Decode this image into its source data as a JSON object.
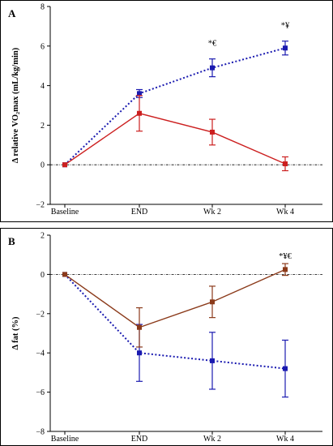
{
  "chart_data": [
    {
      "type": "line",
      "panel_label": "A",
      "ylabel": "Δ relative VO₂max (mL/kg/min)",
      "xlabel": "",
      "categories": [
        "Baseline",
        "END",
        "Wk 2",
        "Wk 4"
      ],
      "ylim": [
        -2,
        8
      ],
      "yticks": [
        -2,
        0,
        2,
        4,
        6,
        8
      ],
      "zero_line": "dashed",
      "grid": false,
      "series": [
        {
          "color": "#1a1ab0",
          "line_style": "dotted",
          "marker": "square",
          "values": [
            0,
            3.6,
            4.9,
            5.9
          ],
          "error": [
            0,
            0.2,
            0.45,
            0.35
          ]
        },
        {
          "color": "#cc1f1f",
          "line_style": "solid",
          "marker": "square",
          "values": [
            0,
            2.6,
            1.65,
            0.05
          ],
          "error": [
            0,
            0.9,
            0.65,
            0.35
          ]
        }
      ],
      "annotations": [
        {
          "category": "Wk 2",
          "text": "*€"
        },
        {
          "category": "Wk 4",
          "text": "*¥"
        }
      ]
    },
    {
      "type": "line",
      "panel_label": "B",
      "ylabel": "Δ fat (%)",
      "xlabel": "",
      "categories": [
        "Baseline",
        "END",
        "Wk 2",
        "Wk 4"
      ],
      "ylim": [
        -8,
        2
      ],
      "yticks": [
        -8,
        -6,
        -4,
        -2,
        0,
        2
      ],
      "zero_line": "dashed",
      "grid": false,
      "series": [
        {
          "color": "#1a1ab0",
          "line_style": "dotted",
          "marker": "square",
          "values": [
            0,
            -4.0,
            -4.4,
            -4.8
          ],
          "error": [
            0,
            1.45,
            1.45,
            1.45
          ]
        },
        {
          "color": "#8b3a1a",
          "line_style": "solid",
          "marker": "square",
          "values": [
            0,
            -2.7,
            -1.4,
            0.25
          ],
          "error": [
            0,
            1.0,
            0.8,
            0.3
          ]
        }
      ],
      "annotations": [
        {
          "category": "Wk 4",
          "text": "*¥€"
        }
      ]
    }
  ]
}
